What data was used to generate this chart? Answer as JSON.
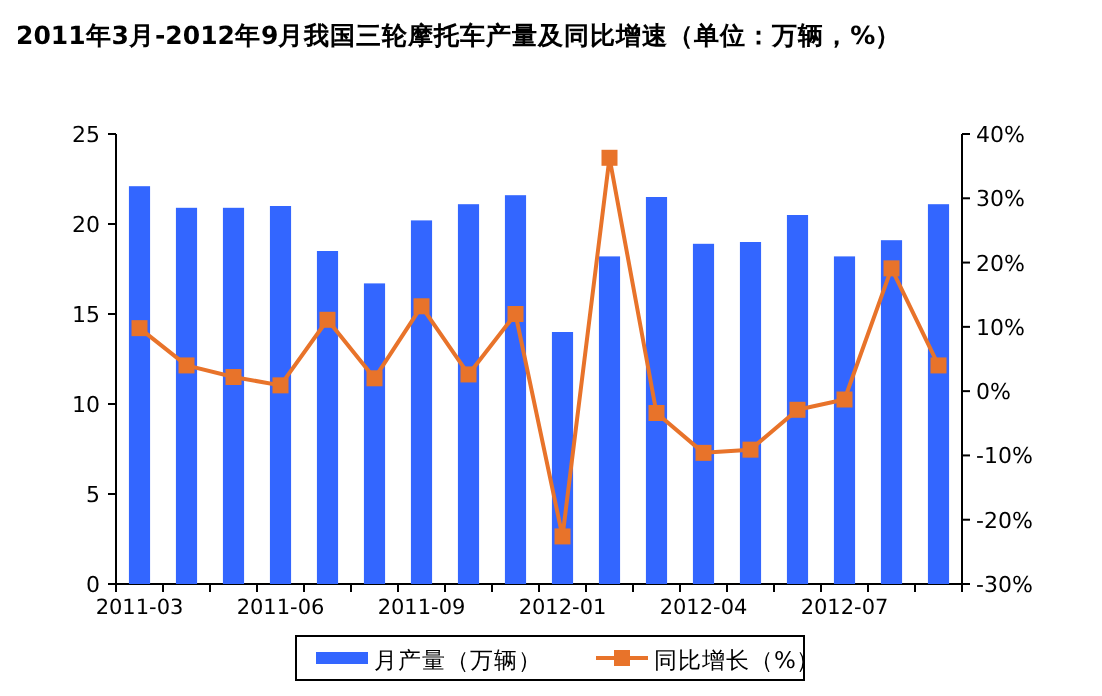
{
  "chart_data": {
    "type": "bar",
    "title": "2011年3月-2012年9月我国三轮摩托车产量及同比增速（单位：万辆，%）",
    "categories": [
      "2011-03",
      null,
      null,
      "2011-06",
      null,
      null,
      "2011-09",
      null,
      null,
      "2012-01",
      null,
      null,
      "2012-04",
      null,
      null,
      "2012-07",
      null,
      null
    ],
    "series": [
      {
        "name": "月产量（万辆）",
        "color": "#3366ff",
        "values": [
          22.1,
          20.9,
          20.9,
          21.0,
          18.5,
          16.7,
          20.2,
          21.1,
          21.6,
          14.0,
          18.2,
          21.5,
          18.9,
          19.0,
          20.5,
          18.2,
          19.1,
          21.1
        ]
      },
      {
        "name": "同比增长（%）",
        "type": "line",
        "axis": "y2",
        "color": "#e8732a",
        "marker": "square",
        "values": [
          9.8,
          4.0,
          2.2,
          0.9,
          11.1,
          2.0,
          13.2,
          2.6,
          12.0,
          -22.6,
          36.3,
          -3.4,
          -9.6,
          -9.1,
          -2.9,
          -1.3,
          19.1,
          4.0
        ]
      }
    ],
    "ylim": [
      0,
      25
    ],
    "yticks": [
      0,
      5,
      10,
      15,
      20,
      25
    ],
    "y2lim": [
      -30,
      40
    ],
    "y2ticks": [
      {
        "value": -30,
        "label": "-30%"
      },
      {
        "value": -20,
        "label": "-20%"
      },
      {
        "value": -10,
        "label": "-10%"
      },
      {
        "value": 0,
        "label": "0%"
      },
      {
        "value": 10,
        "label": "10%"
      },
      {
        "value": 20,
        "label": "20%"
      },
      {
        "value": 30,
        "label": "30%"
      },
      {
        "value": 40,
        "label": "40%"
      }
    ],
    "grid": false,
    "legend": "bottom"
  }
}
